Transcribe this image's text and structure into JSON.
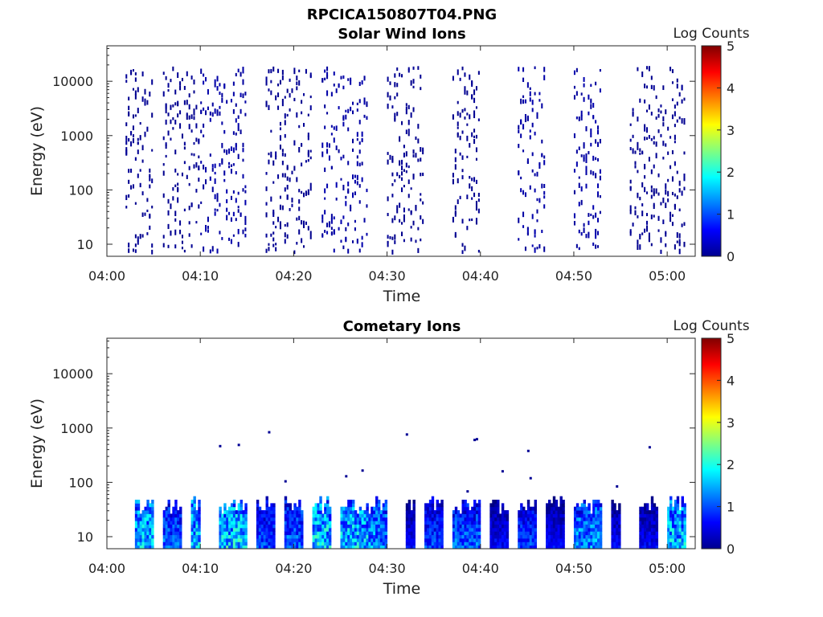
{
  "figure": {
    "title": "RPCICA150807T04.PNG"
  },
  "colorbar": {
    "label": "Log Counts",
    "ticks": [
      "0",
      "1",
      "2",
      "3",
      "4",
      "5"
    ],
    "min": 0,
    "max": 5,
    "colormap": "jet"
  },
  "chart_data": [
    {
      "type": "heatmap",
      "title": "Solar Wind Ions",
      "xlabel": "Time",
      "ylabel": "Energy (eV)",
      "x_ticks": [
        "04:00",
        "04:10",
        "04:20",
        "04:30",
        "04:40",
        "04:50",
        "05:00"
      ],
      "y_ticks": [
        "10",
        "100",
        "1000",
        "10000"
      ],
      "xlim": [
        "04:00",
        "05:03"
      ],
      "ylim": [
        6,
        45000
      ],
      "y_scale": "log",
      "grid": false,
      "bursts": [
        {
          "start": "04:02",
          "end": "04:05",
          "level": 0.1
        },
        {
          "start": "04:06",
          "end": "04:10",
          "level": 0.1
        },
        {
          "start": "04:10",
          "end": "04:15",
          "level": 0.2
        },
        {
          "start": "04:17",
          "end": "04:22",
          "level": 0.1
        },
        {
          "start": "04:23",
          "end": "04:28",
          "level": 0.2
        },
        {
          "start": "04:30",
          "end": "04:34",
          "level": 0.1
        },
        {
          "start": "04:37",
          "end": "04:40",
          "level": 0.1
        },
        {
          "start": "04:44",
          "end": "04:47",
          "level": 0.2
        },
        {
          "start": "04:50",
          "end": "04:53",
          "level": 0.2
        },
        {
          "start": "04:56",
          "end": "05:02",
          "level": 0.1
        }
      ]
    },
    {
      "type": "heatmap",
      "title": "Cometary Ions",
      "xlabel": "Time",
      "ylabel": "Energy (eV)",
      "x_ticks": [
        "04:00",
        "04:10",
        "04:20",
        "04:30",
        "04:40",
        "04:50",
        "05:00"
      ],
      "y_ticks": [
        "10",
        "100",
        "1000",
        "10000"
      ],
      "xlim": [
        "04:00",
        "05:03"
      ],
      "ylim": [
        6,
        45000
      ],
      "y_scale": "log",
      "grid": false,
      "bursts": [
        {
          "start": "04:03",
          "end": "04:05",
          "level": 1.8
        },
        {
          "start": "04:06",
          "end": "04:08",
          "level": 1.2
        },
        {
          "start": "04:09",
          "end": "04:10",
          "level": 1.8
        },
        {
          "start": "04:12",
          "end": "04:15",
          "level": 1.9
        },
        {
          "start": "04:16",
          "end": "04:18",
          "level": 1.0
        },
        {
          "start": "04:19",
          "end": "04:21",
          "level": 1.2
        },
        {
          "start": "04:22",
          "end": "04:24",
          "level": 1.9
        },
        {
          "start": "04:25",
          "end": "04:28",
          "level": 1.8
        },
        {
          "start": "04:28",
          "end": "04:30",
          "level": 1.5
        },
        {
          "start": "04:32",
          "end": "04:33",
          "level": 0.6
        },
        {
          "start": "04:34",
          "end": "04:36",
          "level": 1.0
        },
        {
          "start": "04:37",
          "end": "04:40",
          "level": 1.2
        },
        {
          "start": "04:41",
          "end": "04:43",
          "level": 0.6
        },
        {
          "start": "04:44",
          "end": "04:46",
          "level": 1.0
        },
        {
          "start": "04:47",
          "end": "04:49",
          "level": 0.6
        },
        {
          "start": "04:50",
          "end": "04:53",
          "level": 1.5
        },
        {
          "start": "04:54",
          "end": "04:55",
          "level": 0.6
        },
        {
          "start": "04:57",
          "end": "04:59",
          "level": 0.6
        },
        {
          "start": "05:00",
          "end": "05:02",
          "level": 1.8
        }
      ]
    }
  ]
}
